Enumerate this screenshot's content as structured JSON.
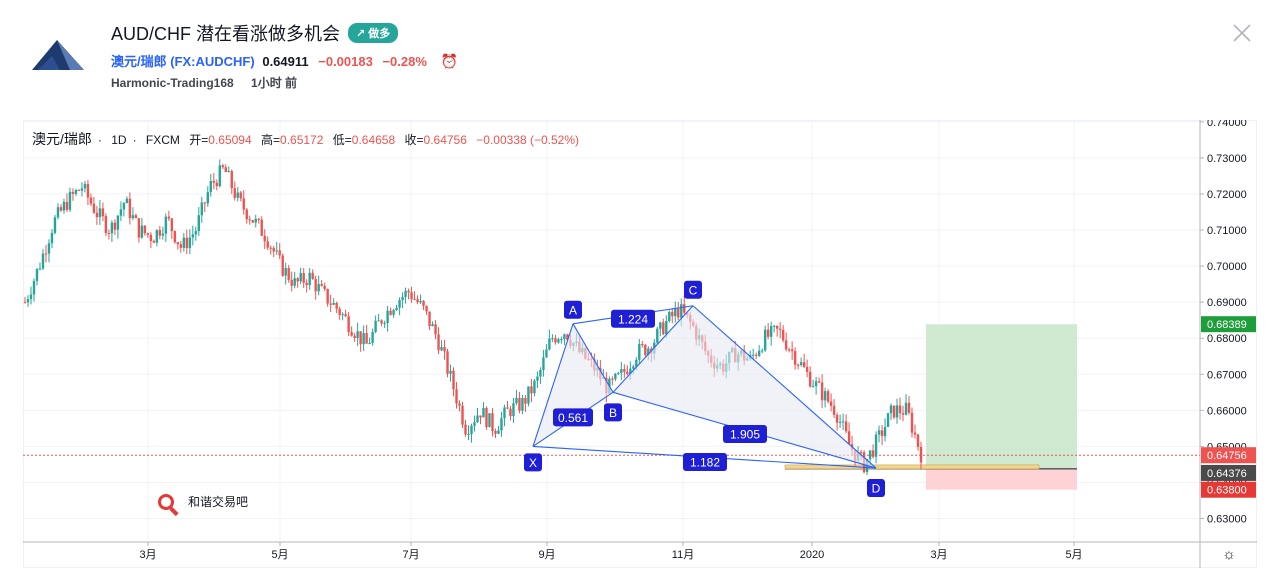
{
  "header": {
    "title": "AUD/CHF 潜在看涨做多机会",
    "badge": "↗ 做多",
    "symbol_display": "澳元/瑞郎 (FX:AUDCHF)",
    "price": "0.64911",
    "change": "−0.00183",
    "change_pct": "−0.28%",
    "author": "Harmonic-Trading168",
    "time_ago": "1小时 前"
  },
  "legend": {
    "symbol": "澳元/瑞郎",
    "interval": "1D",
    "exchange": "FXCM",
    "open_label": "开=",
    "open": "0.65094",
    "high_label": "高=",
    "high": "0.65172",
    "low_label": "低=",
    "low": "0.64658",
    "close_label": "收=",
    "close": "0.64756",
    "change": "−0.00338 (−0.52%)"
  },
  "watermark": {
    "text": "和谐交易吧"
  },
  "colors": {
    "up": "#26a69a",
    "down": "#ef5350",
    "pattern": "#2962ff",
    "label_bg": "#1f1fd6",
    "target_zone": "#c8e6c9",
    "stop_zone": "#ffcdd2"
  },
  "chart_data": {
    "type": "candlestick",
    "title": "",
    "xlabel": "",
    "ylabel": "",
    "ylim": [
      0.6235,
      0.7405
    ],
    "y_ticks": [
      "0.74000",
      "0.73000",
      "0.72000",
      "0.71000",
      "0.70000",
      "0.69000",
      "0.68000",
      "0.67000",
      "0.66000",
      "0.65000",
      "0.64000",
      "0.63000"
    ],
    "x_ticks": [
      "3月",
      "5月",
      "7月",
      "9月",
      "11月",
      "2020",
      "3月",
      "5月"
    ],
    "price_labels": {
      "target": "0.68389",
      "last": "0.64756",
      "entry": "0.64376",
      "stop": "0.63800"
    },
    "harmonic_pattern": {
      "points": [
        {
          "label": "X",
          "price": 0.65
        },
        {
          "label": "A",
          "price": 0.684
        },
        {
          "label": "B",
          "price": 0.665
        },
        {
          "label": "C",
          "price": 0.689
        },
        {
          "label": "D",
          "price": 0.644
        }
      ],
      "ratios": [
        "1.224",
        "0.561",
        "1.905",
        "1.182"
      ]
    },
    "series_trend_close": [
      0.69,
      0.7,
      0.712,
      0.718,
      0.722,
      0.715,
      0.71,
      0.718,
      0.71,
      0.708,
      0.713,
      0.705,
      0.71,
      0.722,
      0.727,
      0.718,
      0.713,
      0.708,
      0.7,
      0.695,
      0.697,
      0.692,
      0.688,
      0.683,
      0.678,
      0.685,
      0.69,
      0.693,
      0.688,
      0.68,
      0.668,
      0.655,
      0.66,
      0.655,
      0.66,
      0.662,
      0.668,
      0.68,
      0.682,
      0.676,
      0.672,
      0.666,
      0.67,
      0.676,
      0.678,
      0.684,
      0.688,
      0.683,
      0.675,
      0.672,
      0.676,
      0.674,
      0.68,
      0.682,
      0.676,
      0.67,
      0.665,
      0.66,
      0.65,
      0.645,
      0.652,
      0.66,
      0.66,
      0.648
    ]
  }
}
